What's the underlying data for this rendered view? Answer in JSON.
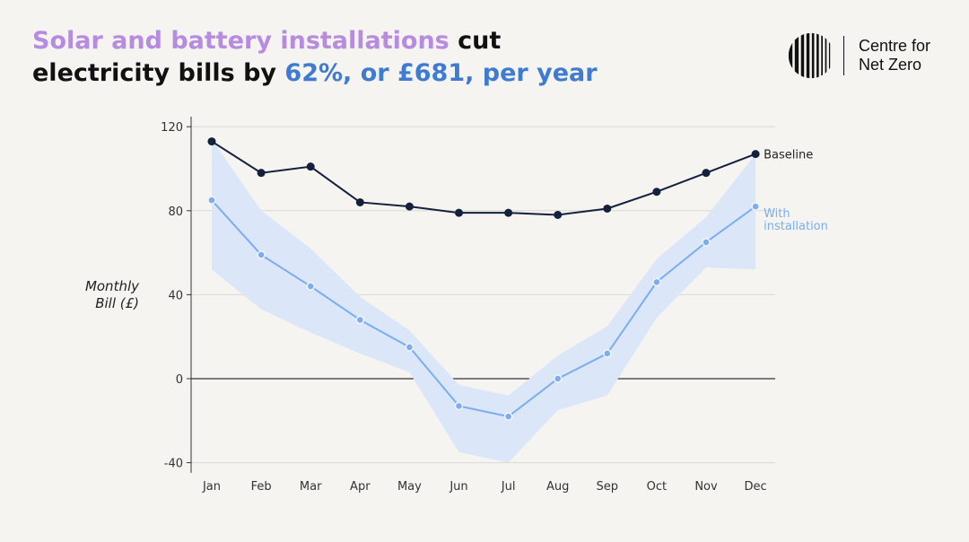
{
  "header": {
    "title_part1": "Solar and battery installations",
    "title_part2": " cut",
    "title_part3": "electricity bills by ",
    "title_part4": "62%, or £681, per year"
  },
  "logo": {
    "line1": "Centre for",
    "line2": "Net Zero",
    "icon": "barcode-circle-logo-icon"
  },
  "colors": {
    "baseline": "#13213d",
    "installation": "#7aaef0",
    "band": "#dbe7f8",
    "title_purple": "#b68be0",
    "title_blue": "#3f7bd0"
  },
  "chart_data": {
    "type": "line",
    "categories": [
      "Jan",
      "Feb",
      "Mar",
      "Apr",
      "May",
      "Jun",
      "Jul",
      "Aug",
      "Sep",
      "Oct",
      "Nov",
      "Dec"
    ],
    "ylabel_line1": "Monthly",
    "ylabel_line2": "Bill (£)",
    "ylim": [
      -45,
      125
    ],
    "yticks": [
      -40,
      0,
      40,
      80,
      120
    ],
    "series": [
      {
        "name": "Baseline",
        "values": [
          113,
          98,
          101,
          84,
          82,
          79,
          79,
          78,
          81,
          89,
          98,
          107
        ]
      },
      {
        "name": "With installation",
        "name_line1": "With",
        "name_line2": "installation",
        "values": [
          85,
          59,
          44,
          28,
          15,
          -13,
          -18,
          0,
          12,
          46,
          65,
          82
        ],
        "band_low": [
          52,
          33,
          22,
          12,
          3,
          -35,
          -40,
          -15,
          -8,
          29,
          53,
          52
        ],
        "band_high": [
          114,
          80,
          62,
          39,
          23,
          -3,
          -8,
          11,
          25,
          57,
          77,
          107
        ]
      }
    ],
    "grid": true,
    "legend": "direct-labels-right"
  }
}
